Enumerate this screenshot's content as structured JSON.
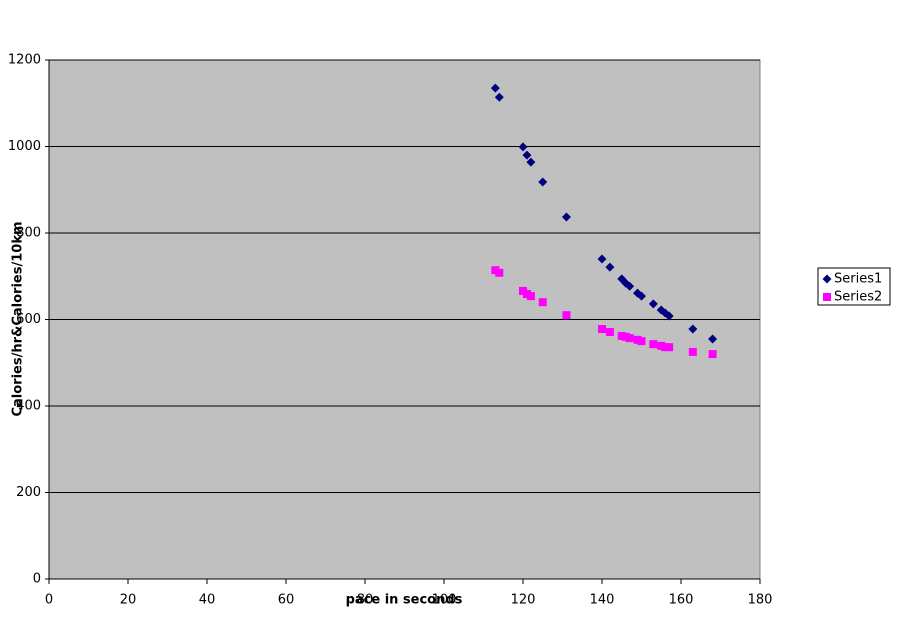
{
  "chart_data": {
    "type": "scatter",
    "x_label": "pace in seconds",
    "y_label": "Calories/hr&Calories/10km",
    "x": [
      113,
      114,
      120,
      121,
      122,
      125,
      131,
      140,
      142,
      145,
      146,
      147,
      149,
      150,
      153,
      155,
      156,
      157,
      163,
      168
    ],
    "series": [
      {
        "name": "Series1",
        "color": "#000080",
        "marker": "diamond",
        "values": [
          1135,
          1114,
          999,
          980,
          964,
          918,
          837,
          740,
          721,
          694,
          684,
          677,
          661,
          654,
          636,
          622,
          615,
          608,
          578,
          555
        ]
      },
      {
        "name": "Series2",
        "color": "#ff00ff",
        "marker": "square",
        "values": [
          714,
          708,
          666,
          659,
          654,
          640,
          610,
          578,
          571,
          562,
          560,
          557,
          553,
          550,
          543,
          539,
          536,
          536,
          525,
          520
        ]
      }
    ],
    "xlim": [
      0,
      180
    ],
    "xticks": [
      0,
      20,
      40,
      60,
      80,
      100,
      120,
      140,
      160,
      180
    ],
    "ylim": [
      0,
      1200
    ],
    "yticks": [
      0,
      200,
      400,
      600,
      800,
      1000,
      1200
    ],
    "grid": true,
    "plot_background": "#c0c0c0",
    "legend": "right"
  }
}
